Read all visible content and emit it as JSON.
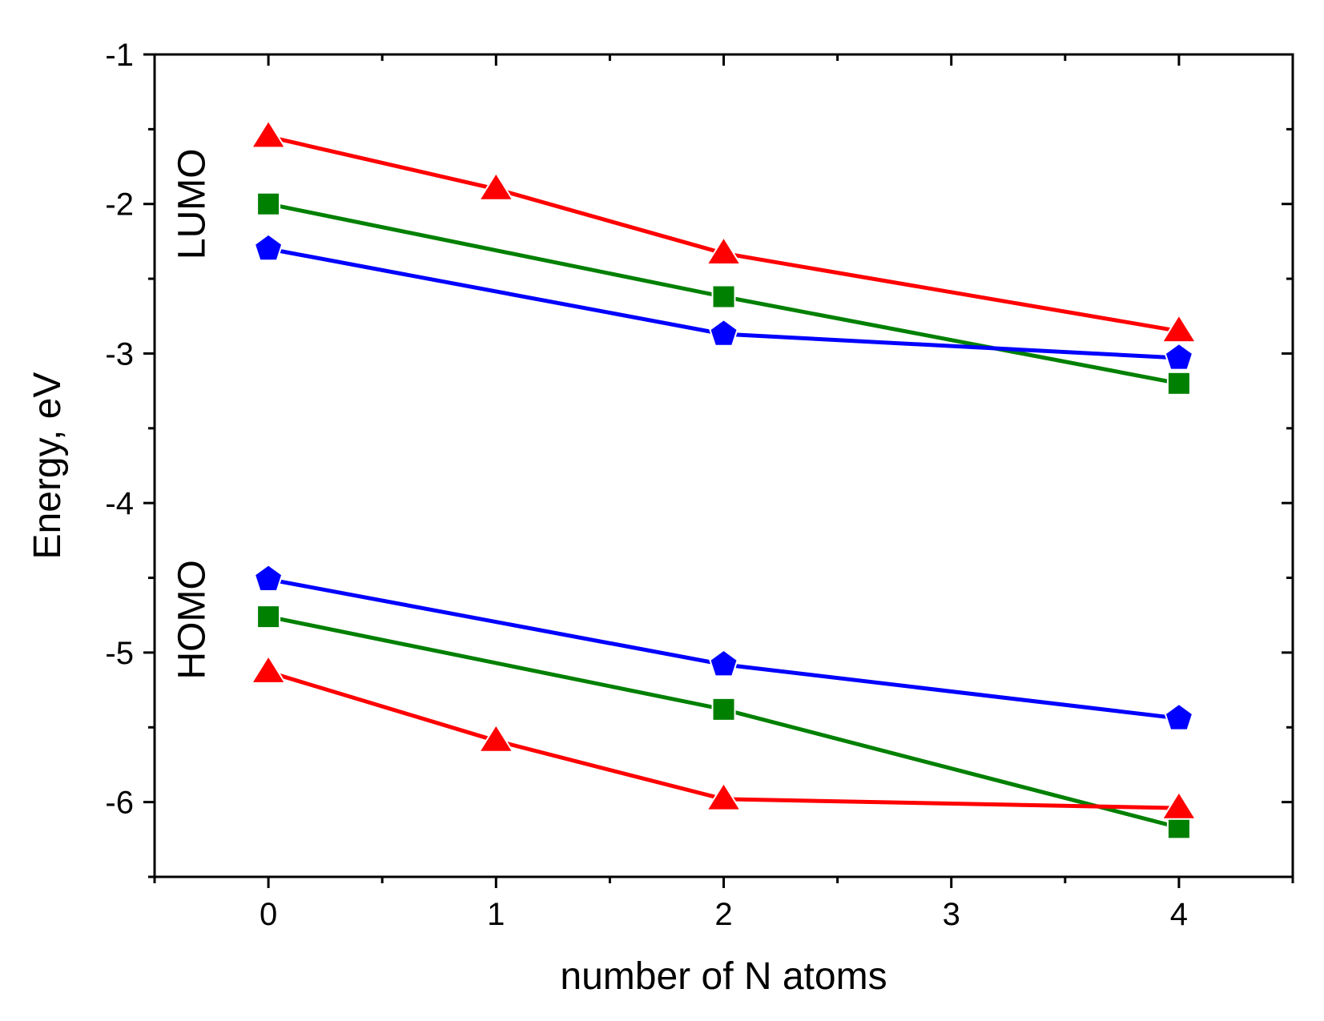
{
  "chart_data": {
    "type": "line",
    "title": "",
    "xlabel": "number of N atoms",
    "ylabel": "Energy, eV",
    "xlim": [
      -0.5,
      4.5
    ],
    "ylim": [
      -6.5,
      -1
    ],
    "xticks": [
      0,
      1,
      2,
      3,
      4
    ],
    "xtick_labels": [
      "0",
      "1",
      "2",
      "3",
      "4"
    ],
    "yticks": [
      -6,
      -5,
      -4,
      -3,
      -2,
      -1
    ],
    "ytick_labels": [
      "-6",
      "-5",
      "-4",
      "-3",
      "-2",
      "-1"
    ],
    "grid": false,
    "legend": "none",
    "annotations": [
      {
        "text": "LUMO",
        "x": -0.28,
        "y": -2.0
      },
      {
        "text": "HOMO",
        "x": -0.28,
        "y": -4.78
      }
    ],
    "series": [
      {
        "name": "LUMO-red",
        "color": "#ff0000",
        "marker": "triangle",
        "x": [
          0,
          1,
          2,
          4
        ],
        "y": [
          -1.55,
          -1.9,
          -2.33,
          -2.85
        ]
      },
      {
        "name": "LUMO-green",
        "color": "#008000",
        "marker": "square",
        "x": [
          0,
          2,
          4
        ],
        "y": [
          -2.0,
          -2.62,
          -3.2
        ]
      },
      {
        "name": "LUMO-blue",
        "color": "#0000ff",
        "marker": "pentagon",
        "x": [
          0,
          2,
          4
        ],
        "y": [
          -2.3,
          -2.87,
          -3.03
        ]
      },
      {
        "name": "HOMO-blue",
        "color": "#0000ff",
        "marker": "pentagon",
        "x": [
          0,
          2,
          4
        ],
        "y": [
          -4.51,
          -5.08,
          -5.44
        ]
      },
      {
        "name": "HOMO-green",
        "color": "#008000",
        "marker": "square",
        "x": [
          0,
          2,
          4
        ],
        "y": [
          -4.76,
          -5.38,
          -6.17
        ]
      },
      {
        "name": "HOMO-red",
        "color": "#ff0000",
        "marker": "triangle",
        "x": [
          0,
          1,
          2,
          4
        ],
        "y": [
          -5.13,
          -5.59,
          -5.98,
          -6.04
        ]
      }
    ]
  }
}
